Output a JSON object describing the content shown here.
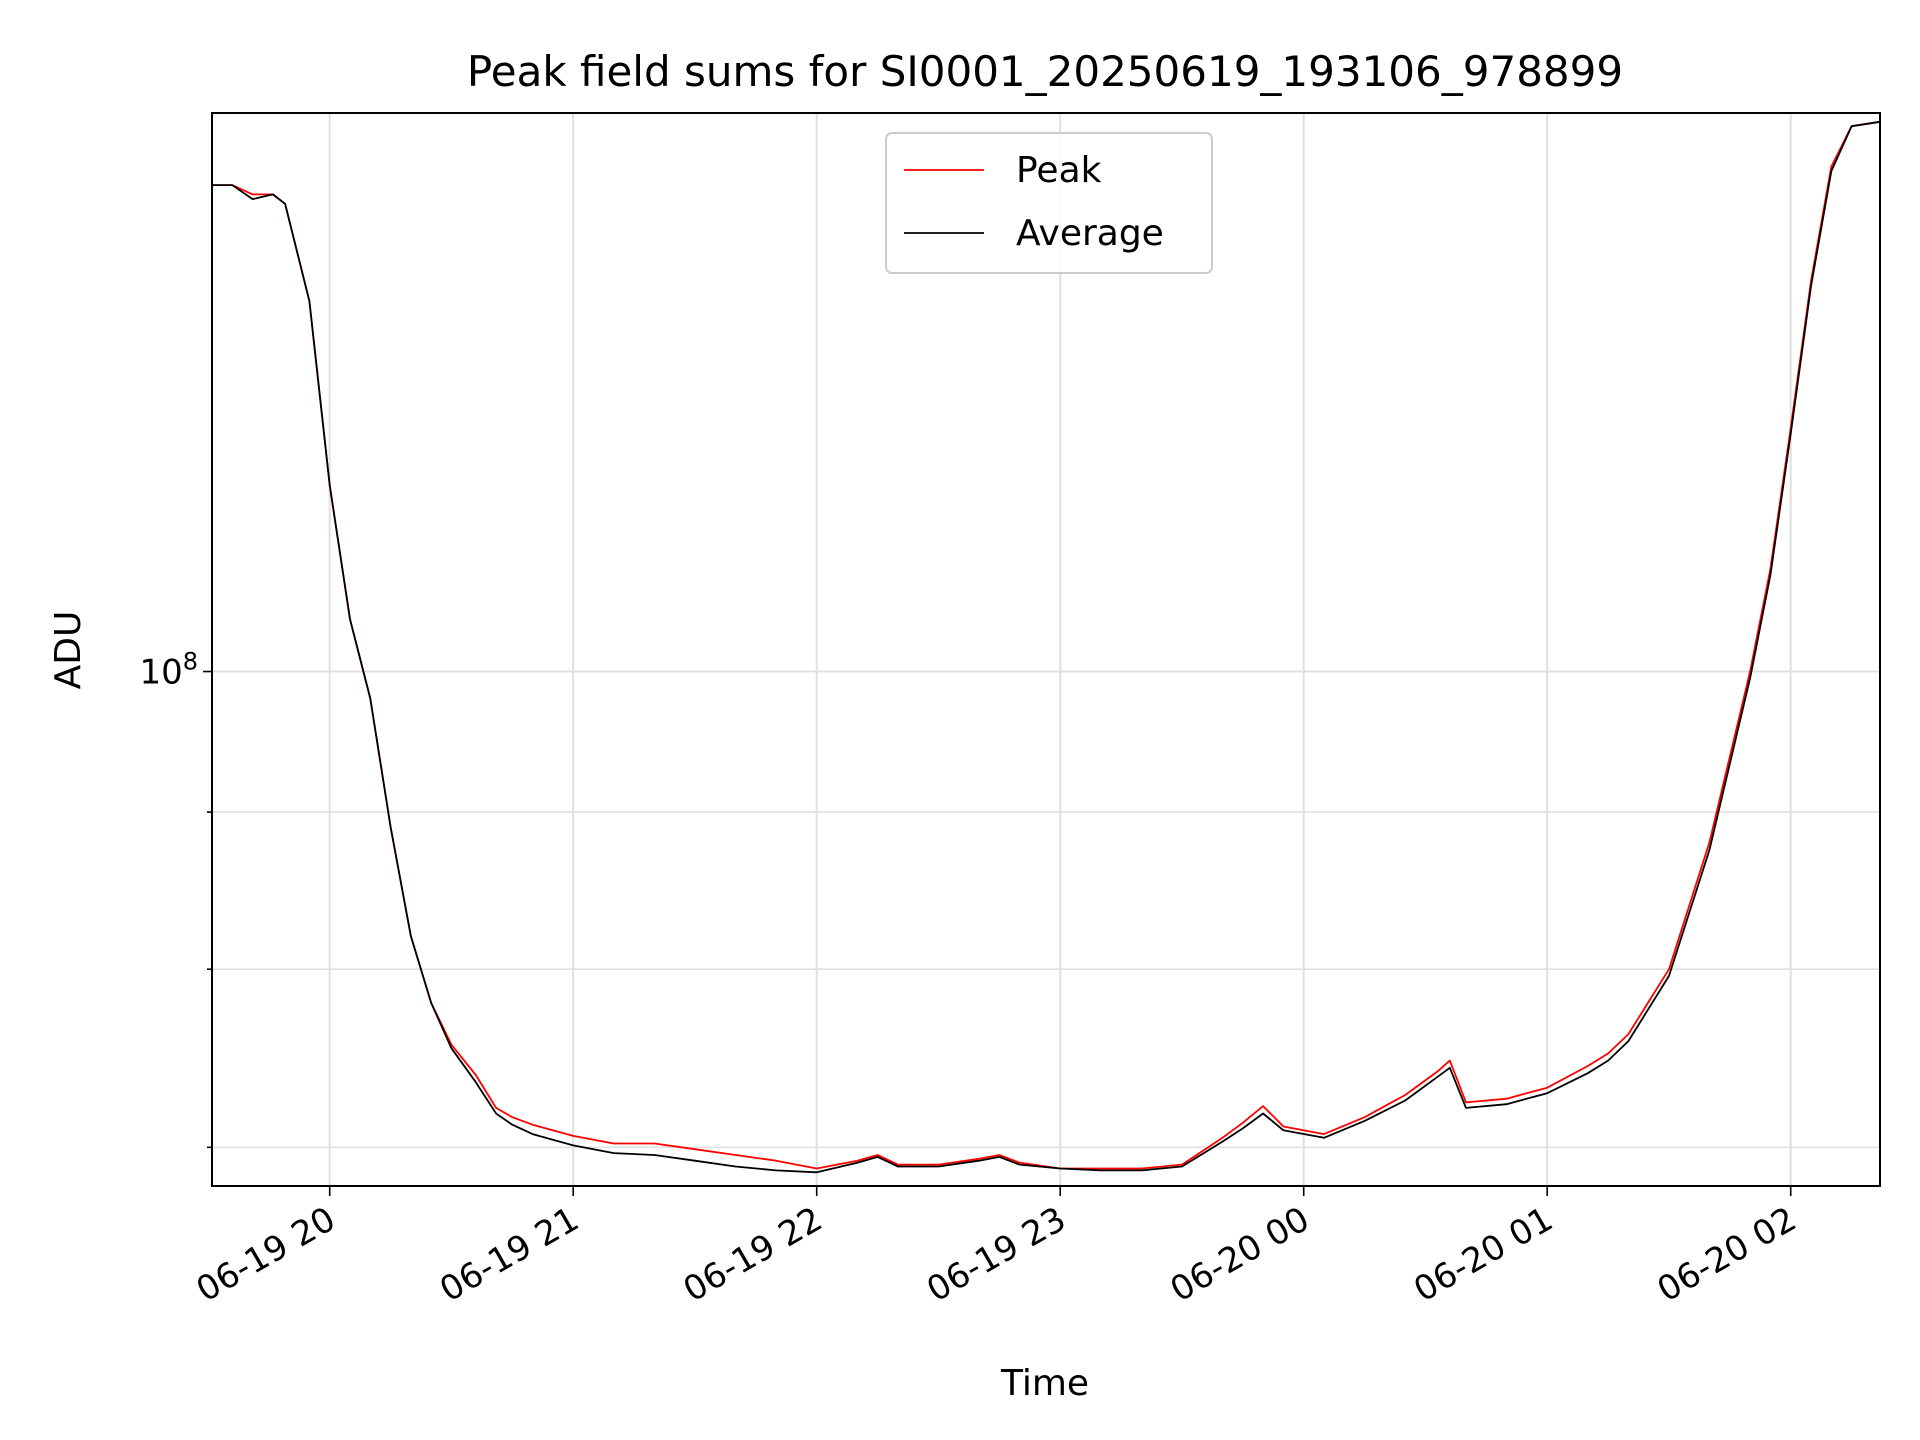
{
  "chart_data": {
    "type": "line",
    "title": "Peak field sums for SI0001_20250619_193106_978899",
    "xlabel": "Time",
    "ylabel": "ADU",
    "y_scale": "log",
    "grid": true,
    "legend_position": "upper-center",
    "xlim": [
      "06-19 19:31",
      "06-20 02:22"
    ],
    "ylim": [
      68000000,
      152000000
    ],
    "x_ticks": [
      "06-19 20",
      "06-19 21",
      "06-19 22",
      "06-19 23",
      "06-20 00",
      "06-20 01",
      "06-20 02"
    ],
    "y_tick_major": {
      "mantissa": "10",
      "exponent": "8",
      "value": 100000000
    },
    "series": [
      {
        "name": "Peak",
        "color": "#ff0000",
        "x": [
          "06-19 19:31",
          "06-19 19:36",
          "06-19 19:41",
          "06-19 19:46",
          "06-19 19:49",
          "06-19 19:55",
          "06-19 20:00",
          "06-19 20:05",
          "06-19 20:10",
          "06-19 20:15",
          "06-19 20:20",
          "06-19 20:25",
          "06-19 20:30",
          "06-19 20:36",
          "06-19 20:41",
          "06-19 20:45",
          "06-19 20:50",
          "06-19 21:00",
          "06-19 21:10",
          "06-19 21:20",
          "06-19 21:30",
          "06-19 21:40",
          "06-19 21:50",
          "06-19 22:00",
          "06-19 22:10",
          "06-19 22:15",
          "06-19 22:20",
          "06-19 22:30",
          "06-19 22:40",
          "06-19 22:45",
          "06-19 22:50",
          "06-19 23:00",
          "06-19 23:10",
          "06-19 23:20",
          "06-19 23:30",
          "06-19 23:40",
          "06-19 23:45",
          "06-19 23:50",
          "06-19 23:55",
          "06-20 00:05",
          "06-20 00:15",
          "06-20 00:25",
          "06-20 00:33",
          "06-20 00:36",
          "06-20 00:40",
          "06-20 00:50",
          "06-20 01:00",
          "06-20 01:10",
          "06-20 01:15",
          "06-20 01:20",
          "06-20 01:30",
          "06-20 01:40",
          "06-20 01:50",
          "06-20 01:55",
          "06-20 02:00",
          "06-20 02:05",
          "06-20 02:10",
          "06-20 02:15",
          "06-20 02:22"
        ],
        "y": [
          144000000,
          144000000,
          143000000,
          143000000,
          142000000,
          132000000,
          115000000,
          104000000,
          98000000,
          89000000,
          82000000,
          78000000,
          75600000,
          73900000,
          72100000,
          71600000,
          71200000,
          70600000,
          70200000,
          70200000,
          69900000,
          69600000,
          69300000,
          68900000,
          69300000,
          69600000,
          69100000,
          69100000,
          69400000,
          69600000,
          69200000,
          68900000,
          68900000,
          68900000,
          69100000,
          70500000,
          71300000,
          72200000,
          71100000,
          70700000,
          71600000,
          72800000,
          74100000,
          74700000,
          72400000,
          72600000,
          73200000,
          74400000,
          75100000,
          76200000,
          80000000,
          88000000,
          100000000,
          108000000,
          120000000,
          134000000,
          146000000,
          150500000,
          151000000
        ]
      },
      {
        "name": "Average",
        "color": "#000000",
        "x": [
          "06-19 19:31",
          "06-19 19:36",
          "06-19 19:41",
          "06-19 19:46",
          "06-19 19:49",
          "06-19 19:55",
          "06-19 20:00",
          "06-19 20:05",
          "06-19 20:10",
          "06-19 20:15",
          "06-19 20:20",
          "06-19 20:25",
          "06-19 20:30",
          "06-19 20:36",
          "06-19 20:41",
          "06-19 20:45",
          "06-19 20:50",
          "06-19 21:00",
          "06-19 21:10",
          "06-19 21:20",
          "06-19 21:30",
          "06-19 21:40",
          "06-19 21:50",
          "06-19 22:00",
          "06-19 22:10",
          "06-19 22:15",
          "06-19 22:20",
          "06-19 22:30",
          "06-19 22:40",
          "06-19 22:45",
          "06-19 22:50",
          "06-19 23:00",
          "06-19 23:10",
          "06-19 23:20",
          "06-19 23:30",
          "06-19 23:40",
          "06-19 23:45",
          "06-19 23:50",
          "06-19 23:55",
          "06-20 00:05",
          "06-20 00:15",
          "06-20 00:25",
          "06-20 00:33",
          "06-20 00:36",
          "06-20 00:40",
          "06-20 00:50",
          "06-20 01:00",
          "06-20 01:10",
          "06-20 01:15",
          "06-20 01:20",
          "06-20 01:30",
          "06-20 01:40",
          "06-20 01:50",
          "06-20 01:55",
          "06-20 02:00",
          "06-20 02:05",
          "06-20 02:10",
          "06-20 02:15",
          "06-20 02:22"
        ],
        "y": [
          144000000,
          144000000,
          142500000,
          143000000,
          142000000,
          132000000,
          115000000,
          104000000,
          98000000,
          89000000,
          82000000,
          78000000,
          75400000,
          73500000,
          71800000,
          71200000,
          70700000,
          70100000,
          69700000,
          69600000,
          69300000,
          69000000,
          68800000,
          68700000,
          69200000,
          69500000,
          69000000,
          69000000,
          69300000,
          69500000,
          69100000,
          68900000,
          68800000,
          68800000,
          69000000,
          70300000,
          71000000,
          71800000,
          70900000,
          70500000,
          71400000,
          72500000,
          73800000,
          74300000,
          72100000,
          72300000,
          72900000,
          74000000,
          74700000,
          75800000,
          79600000,
          87500000,
          99500000,
          107500000,
          119500000,
          133500000,
          145500000,
          150500000,
          151000000
        ]
      }
    ]
  }
}
